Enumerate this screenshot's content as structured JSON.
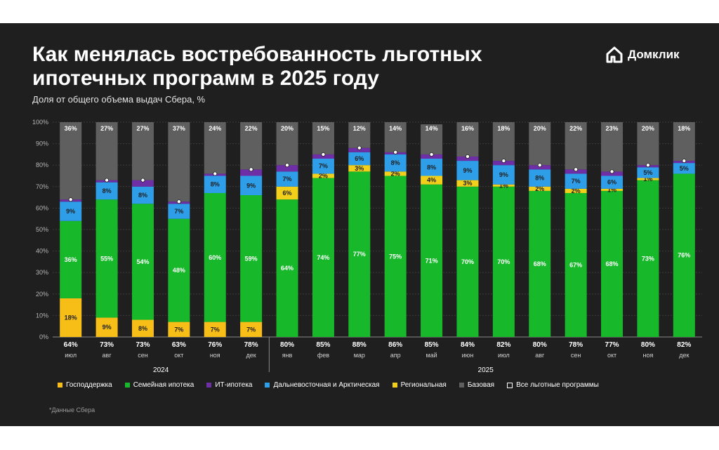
{
  "header": {
    "title": "Как менялась востребованность льготных ипотечных программ в 2025 году",
    "subtitle": "Доля от общего объема выдач Сбера, %"
  },
  "brand": {
    "name": "Домклик",
    "icon": "house-logo-icon"
  },
  "footnote": "*Данные Сбера",
  "colors": {
    "background": "#1f1f1f",
    "gos": "#f7be17",
    "family": "#17b92b",
    "it": "#6e2fa6",
    "far_east": "#2f9ee8",
    "regional": "#f2cf1b",
    "base": "#5f5f5f"
  },
  "chart_data": {
    "type": "bar",
    "stacked": true,
    "title": "Как менялась востребованность льготных ипотечных программ в 2025 году",
    "ylabel": "Доля от общего объема выдач Сбера, %",
    "ylim": [
      0,
      100
    ],
    "yticks": [
      "0%",
      "10%",
      "20%",
      "30%",
      "40%",
      "50%",
      "60%",
      "70%",
      "80%",
      "90%",
      "100%"
    ],
    "grid": true,
    "categories": [
      "июл",
      "авг",
      "сен",
      "окт",
      "ноя",
      "дек",
      "янв",
      "фев",
      "мар",
      "апр",
      "май",
      "июн",
      "июл",
      "авг",
      "сен",
      "окт",
      "ноя",
      "дек"
    ],
    "groups": [
      {
        "label": "2024",
        "count": 6
      },
      {
        "label": "2025",
        "count": 12
      }
    ],
    "series": [
      {
        "key": "gos",
        "name": "Господдержка",
        "values": [
          18,
          9,
          8,
          7,
          7,
          7,
          0,
          0,
          0,
          0,
          0,
          0,
          0,
          0,
          0,
          0,
          0,
          0
        ]
      },
      {
        "key": "family",
        "name": "Семейная ипотека",
        "values": [
          36,
          55,
          54,
          48,
          60,
          59,
          64,
          74,
          77,
          75,
          71,
          70,
          70,
          68,
          67,
          68,
          73,
          76
        ]
      },
      {
        "key": "regional",
        "name": "Региональная",
        "values": [
          0,
          0,
          0,
          0,
          0,
          0,
          6,
          2,
          3,
          2,
          4,
          3,
          1,
          2,
          2,
          1,
          1,
          0
        ]
      },
      {
        "key": "far_east",
        "name": "Дальневосточная и Арктическая",
        "values": [
          9,
          8,
          8,
          7,
          8,
          9,
          7,
          7,
          6,
          8,
          8,
          9,
          9,
          8,
          7,
          6,
          5,
          5
        ]
      },
      {
        "key": "it",
        "name": "ИТ-ипотека",
        "values": [
          1,
          1,
          3,
          1,
          1,
          3,
          3,
          2,
          2,
          1,
          2,
          2,
          2,
          2,
          2,
          2,
          1,
          1
        ]
      },
      {
        "key": "base",
        "name": "Базовая",
        "values": [
          36,
          27,
          27,
          37,
          24,
          22,
          20,
          15,
          12,
          14,
          14,
          16,
          18,
          20,
          22,
          23,
          20,
          18
        ]
      }
    ],
    "total_preferential": {
      "name": "Все льготные программы",
      "values": [
        64,
        73,
        73,
        63,
        76,
        78,
        80,
        85,
        88,
        86,
        85,
        84,
        82,
        80,
        78,
        77,
        80,
        82
      ]
    },
    "legend": [
      "Господдержка",
      "Семейная ипотека",
      "ИТ-ипотека",
      "Дальневосточная и Арктическая",
      "Региональная",
      "Базовая",
      "Все льготные программы"
    ],
    "legend_position": "bottom"
  }
}
